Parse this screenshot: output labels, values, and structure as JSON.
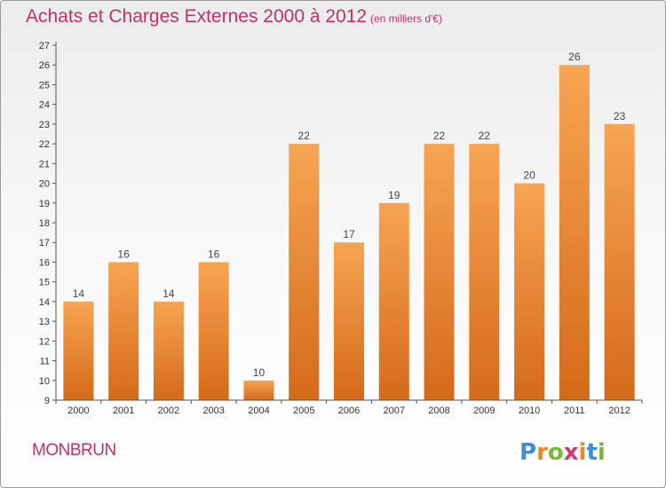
{
  "header": {
    "title": "Achats et Charges Externes 2000 à 2012",
    "subtitle": "(en milliers d'€)"
  },
  "footer": {
    "commune": "MONBRUN",
    "logo_text": "Proxiti"
  },
  "colors": {
    "accent": "#c0306a",
    "bar_top": "#f7a553",
    "bar_bottom": "#d46a1a"
  },
  "chart_data": {
    "type": "bar",
    "title": "Achats et Charges Externes 2000 à 2012",
    "categories": [
      "2000",
      "2001",
      "2002",
      "2003",
      "2004",
      "2005",
      "2006",
      "2007",
      "2008",
      "2009",
      "2010",
      "2011",
      "2012"
    ],
    "values": [
      14,
      16,
      14,
      16,
      10,
      22,
      17,
      19,
      22,
      22,
      20,
      26,
      23
    ],
    "ylim": [
      9,
      27
    ],
    "yticks": [
      9,
      10,
      11,
      12,
      13,
      14,
      15,
      16,
      17,
      18,
      19,
      20,
      21,
      22,
      23,
      24,
      25,
      26,
      27
    ],
    "grid": false,
    "legend": "none"
  }
}
